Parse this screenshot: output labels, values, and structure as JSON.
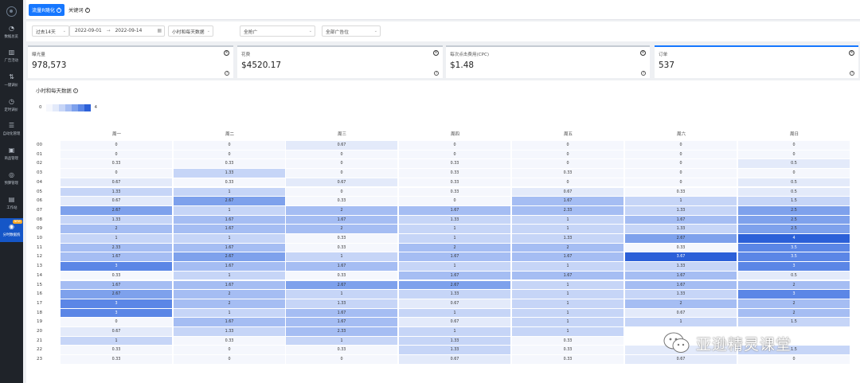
{
  "sidebar": {
    "items": [
      {
        "icon": "pie-chart-icon",
        "glyph": "◔",
        "label": "数据总览"
      },
      {
        "icon": "bar-chart-icon",
        "glyph": "▥",
        "label": "广告活动"
      },
      {
        "icon": "adjust-icon",
        "glyph": "⇅",
        "label": "一键调价"
      },
      {
        "icon": "clock-icon",
        "glyph": "◷",
        "label": "定时调价"
      },
      {
        "icon": "sliders-icon",
        "glyph": "☰",
        "label": "自动化管理"
      },
      {
        "icon": "box-icon",
        "glyph": "▣",
        "label": "商品管理"
      },
      {
        "icon": "target-icon",
        "glyph": "◎",
        "label": "预算管理"
      },
      {
        "icon": "briefcase-icon",
        "glyph": "▤",
        "label": "工作站"
      },
      {
        "icon": "heatmap-icon",
        "glyph": "◉",
        "label": "分时数据统",
        "badge": "NEW",
        "active": true
      }
    ]
  },
  "tabs": [
    {
      "label": "流量R随化",
      "active": true
    },
    {
      "label": "关键词",
      "active": false
    }
  ],
  "filters": {
    "range": "过去14天",
    "date_start": "2022-09-01",
    "date_arrow": "→",
    "date_end": "2022-09-14",
    "granularity": "小时和每天数据",
    "campaign": "全抢广",
    "placement": "全部广告位"
  },
  "cards": [
    {
      "label": "曝光量",
      "value": "978,573",
      "selected": false
    },
    {
      "label": "花费",
      "value": "$4520.17",
      "selected": false
    },
    {
      "label": "每次点击费用(CPC)",
      "value": "$1.48",
      "selected": false
    },
    {
      "label": "订单",
      "value": "537",
      "selected": true
    }
  ],
  "heatmap": {
    "title": "小时和每天数据",
    "legend_min": "0",
    "legend_max": "4",
    "scale_colors": [
      "#f5f7fd",
      "#e3eafa",
      "#c6d5f7",
      "#a5bdf3",
      "#7ea1ec",
      "#5b86e6",
      "#2c60d8"
    ],
    "days": [
      "周一",
      "周二",
      "周三",
      "周四",
      "周五",
      "周六",
      "周日"
    ],
    "hours": [
      "00",
      "01",
      "02",
      "03",
      "04",
      "05",
      "06",
      "07",
      "08",
      "09",
      "10",
      "11",
      "12",
      "13",
      "14",
      "15",
      "16",
      "17",
      "18",
      "19",
      "20",
      "21",
      "22",
      "23"
    ],
    "values": [
      [
        "0",
        "0",
        "0.67",
        "0",
        "0",
        "0",
        "0"
      ],
      [
        "0",
        "0",
        "0",
        "0",
        "0",
        "0",
        "0"
      ],
      [
        "0.33",
        "0.33",
        "0",
        "0.33",
        "0",
        "0",
        "0.5"
      ],
      [
        "0",
        "1.33",
        "0",
        "0.33",
        "0.33",
        "0",
        "0"
      ],
      [
        "0.67",
        "0.33",
        "0.67",
        "0.33",
        "0",
        "0",
        "0.5"
      ],
      [
        "1.33",
        "1",
        "0",
        "0.33",
        "0.67",
        "0.33",
        "0.5"
      ],
      [
        "0.67",
        "2.67",
        "0.33",
        "0",
        "1.67",
        "1",
        "1.5"
      ],
      [
        "2.67",
        "1",
        "2",
        "1.67",
        "2.33",
        "1.33",
        "2.5"
      ],
      [
        "1.33",
        "1.67",
        "1.67",
        "1.33",
        "1",
        "1.67",
        "2.5"
      ],
      [
        "2",
        "1.67",
        "2",
        "1",
        "1",
        "1.33",
        "2.5"
      ],
      [
        "1",
        "1",
        "0.33",
        "1",
        "1.33",
        "2.67",
        "4"
      ],
      [
        "2.33",
        "1.67",
        "0.33",
        "2",
        "2",
        "0.33",
        "3.5"
      ],
      [
        "1.67",
        "2.67",
        "1",
        "1.67",
        "1.67",
        "3.67",
        "3.5"
      ],
      [
        "3",
        "1.67",
        "1.67",
        "1",
        "1",
        "1.33",
        "3"
      ],
      [
        "0.33",
        "1",
        "0.33",
        "1.67",
        "1.67",
        "1.67",
        "0.5"
      ],
      [
        "1.67",
        "1.67",
        "2.67",
        "2.67",
        "1",
        "1.67",
        "2"
      ],
      [
        "2.67",
        "2",
        "1",
        "1.33",
        "1",
        "1.33",
        "3"
      ],
      [
        "3",
        "2",
        "1.33",
        "0.67",
        "1",
        "2",
        "2"
      ],
      [
        "3",
        "1",
        "1.67",
        "1",
        "1",
        "0.67",
        "2"
      ],
      [
        "0",
        "1.67",
        "1.67",
        "0.67",
        "1",
        "1",
        "1.5"
      ],
      [
        "0.67",
        "1.33",
        "2.33",
        "1",
        "1",
        "",
        ""
      ],
      [
        "1",
        "0.33",
        "1",
        "1.33",
        "0.33",
        "",
        ""
      ],
      [
        "0.33",
        "0",
        "0.33",
        "1.33",
        "0.33",
        "0.67",
        "1.5"
      ],
      [
        "0.33",
        "0",
        "0",
        "0.67",
        "0.33",
        "0.67",
        "0"
      ]
    ]
  },
  "watermark": {
    "text": "亚逊精灵课堂"
  }
}
